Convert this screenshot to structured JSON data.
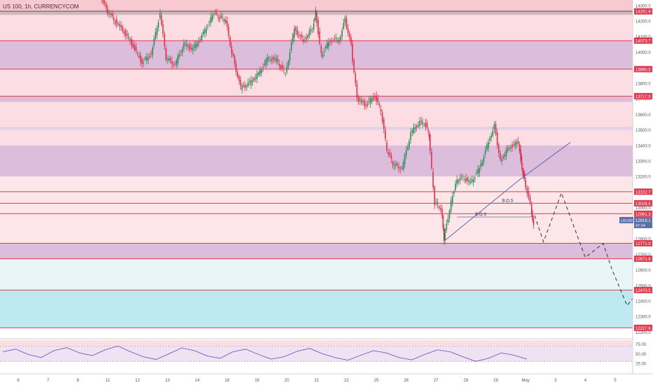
{
  "header": {
    "symbol_line": "US 100, 1h, CURRENCYCOM"
  },
  "chart_data": {
    "type": "candlestick",
    "price_axis": {
      "range": [
        12175,
        14335
      ],
      "ticks": [
        14300,
        14200,
        14100,
        14000,
        13900,
        13800,
        13700,
        13600,
        13500,
        13400,
        13300,
        13200,
        13100,
        13000,
        12900,
        12800,
        12700,
        12600,
        12500,
        12400,
        12300,
        12200
      ],
      "labels": [
        "14300.0",
        "14200.0",
        "14100.0",
        "14000.0",
        "13900.0",
        "13800.0",
        "13700.0",
        "13600.0",
        "13500.0",
        "13400.0",
        "13300.0",
        "13200.0",
        "13100.0",
        "13000.0",
        "12900.0",
        "12800.0",
        "12700.0",
        "12600.0",
        "12500.0",
        "12400.0",
        "12300.0",
        "12200.0"
      ]
    },
    "time_axis": {
      "labels": [
        "6",
        "7",
        "8",
        "11",
        "12",
        "13",
        "14",
        "18",
        "19",
        "20",
        "21",
        "22",
        "25",
        "26",
        "27",
        "28",
        "29",
        "May",
        "3",
        "4",
        "5"
      ],
      "session_index": [
        0,
        1,
        2,
        3,
        4,
        5,
        6,
        7,
        8,
        9,
        10,
        11,
        12,
        13,
        14,
        15,
        16,
        17,
        18,
        19,
        20
      ]
    },
    "zones": [
      {
        "from": 14335,
        "to": 14261.9,
        "color": "#f9c9d2"
      },
      {
        "from": 14261.9,
        "to": 14073.7,
        "color": "#fbdde3"
      },
      {
        "from": 14073.7,
        "to": 13890.5,
        "color": "#dcbedc"
      },
      {
        "from": 13890.5,
        "to": 13717.0,
        "color": "#fbdde3"
      },
      {
        "from": 13717.0,
        "to": 13680.0,
        "color": "#dcbedc"
      },
      {
        "from": 13680.0,
        "to": 13520.0,
        "color": "#fbdde3"
      },
      {
        "from": 13520.0,
        "to": 13500.0,
        "color": "#e3d1ea"
      },
      {
        "from": 13500.0,
        "to": 13400.0,
        "color": "#fbdde3"
      },
      {
        "from": 13400.0,
        "to": 13200.0,
        "color": "#dcbedc"
      },
      {
        "from": 13200.0,
        "to": 12771.0,
        "color": "#fce6ea"
      },
      {
        "from": 12771.0,
        "to": 12671.6,
        "color": "#dcbedc"
      },
      {
        "from": 12671.6,
        "to": 12470.5,
        "color": "#e8f6f8"
      },
      {
        "from": 12470.5,
        "to": 12227.6,
        "color": "#bfe9f0"
      },
      {
        "from": 12227.6,
        "to": 12175,
        "color": "#ffffff"
      }
    ],
    "levels": [
      {
        "price": 14261.9,
        "label": "14261.9",
        "color": "#e03a4e"
      },
      {
        "price": 14073.7,
        "label": "14073.7",
        "color": "#e03a4e"
      },
      {
        "price": 13890.5,
        "label": "13890.5",
        "color": "#e03a4e"
      },
      {
        "price": 13717.0,
        "label": "13717.0",
        "color": "#e03a4e"
      },
      {
        "price": 13102.7,
        "label": "13102.7",
        "color": "#e03a4e"
      },
      {
        "price": 13028.5,
        "label": "13028.5",
        "color": "#e03a4e"
      },
      {
        "price": 12961.3,
        "label": "12961.3",
        "color": "#e03a4e"
      },
      {
        "price": 12771.0,
        "label": "12771.0",
        "color": "#e03a4e"
      },
      {
        "price": 12671.6,
        "label": "12671.6",
        "color": "#e03a4e"
      },
      {
        "price": 12470.5,
        "label": "12470.5",
        "color": "#e03a4e"
      },
      {
        "price": 12227.6,
        "label": "12227.6",
        "color": "#e03a4e"
      }
    ],
    "current_price": {
      "symbol": "US100",
      "price": "12919.1",
      "countdown": "47:14",
      "color": "#5b6fa6"
    },
    "price_path": [
      [
        2.8,
        14380
      ],
      [
        3.0,
        14270
      ],
      [
        3.3,
        14200
      ],
      [
        3.6,
        14130
      ],
      [
        3.9,
        14040
      ],
      [
        4.2,
        13930
      ],
      [
        4.5,
        13990
      ],
      [
        4.8,
        14250
      ],
      [
        5.0,
        13960
      ],
      [
        5.3,
        13920
      ],
      [
        5.6,
        14050
      ],
      [
        5.9,
        14020
      ],
      [
        6.2,
        14100
      ],
      [
        6.6,
        14250
      ],
      [
        7.0,
        14200
      ],
      [
        7.2,
        14000
      ],
      [
        7.5,
        13770
      ],
      [
        7.8,
        13800
      ],
      [
        8.1,
        13860
      ],
      [
        8.4,
        13960
      ],
      [
        8.7,
        13950
      ],
      [
        9.0,
        13860
      ],
      [
        9.3,
        14150
      ],
      [
        9.6,
        14070
      ],
      [
        9.9,
        14150
      ],
      [
        10.0,
        14270
      ],
      [
        10.2,
        13980
      ],
      [
        10.5,
        14080
      ],
      [
        10.8,
        14080
      ],
      [
        11.0,
        14210
      ],
      [
        11.2,
        14040
      ],
      [
        11.4,
        13700
      ],
      [
        11.7,
        13660
      ],
      [
        12.0,
        13720
      ],
      [
        12.2,
        13620
      ],
      [
        12.4,
        13370
      ],
      [
        12.6,
        13280
      ],
      [
        12.9,
        13250
      ],
      [
        13.2,
        13480
      ],
      [
        13.5,
        13550
      ],
      [
        13.7,
        13530
      ],
      [
        13.8,
        13460
      ],
      [
        14.0,
        13030
      ],
      [
        14.2,
        13000
      ],
      [
        14.3,
        12800
      ],
      [
        14.5,
        12990
      ],
      [
        14.7,
        13160
      ],
      [
        14.9,
        13200
      ],
      [
        15.2,
        13160
      ],
      [
        15.5,
        13250
      ],
      [
        15.8,
        13420
      ],
      [
        16.0,
        13530
      ],
      [
        16.2,
        13300
      ],
      [
        16.5,
        13390
      ],
      [
        16.8,
        13420
      ],
      [
        16.9,
        13270
      ],
      [
        17.0,
        13180
      ],
      [
        17.2,
        13020
      ],
      [
        17.3,
        12880
      ]
    ],
    "trendline": [
      [
        14.3,
        12790
      ],
      [
        16.8,
        13180
      ],
      [
        18.5,
        13420
      ]
    ],
    "bos_labels": [
      {
        "text": "B.O.S",
        "x": 16.4,
        "price": 13028.5
      },
      {
        "text": "B.O.S",
        "x": 15.5,
        "price": 12940
      }
    ],
    "projection": [
      [
        17.3,
        12950
      ],
      [
        17.6,
        12780
      ],
      [
        18.2,
        13095
      ],
      [
        19.0,
        12680
      ],
      [
        19.6,
        12770
      ],
      [
        19.9,
        12600
      ],
      [
        20.4,
        12370
      ],
      [
        20.6,
        12420
      ]
    ],
    "rsi": {
      "ticks": [
        75,
        50,
        25
      ],
      "labels": [
        "75.00",
        "50.00",
        "25.00"
      ],
      "overbought": 70,
      "oversold": 30,
      "values": [
        55,
        62,
        48,
        40,
        58,
        66,
        52,
        45,
        60,
        70,
        55,
        42,
        35,
        50,
        65,
        58,
        44,
        38,
        55,
        62,
        48,
        36,
        42,
        56,
        64,
        50,
        40,
        33,
        46,
        58,
        52,
        40,
        34,
        48,
        60,
        55,
        42,
        30,
        38,
        52,
        46,
        36
      ]
    }
  }
}
